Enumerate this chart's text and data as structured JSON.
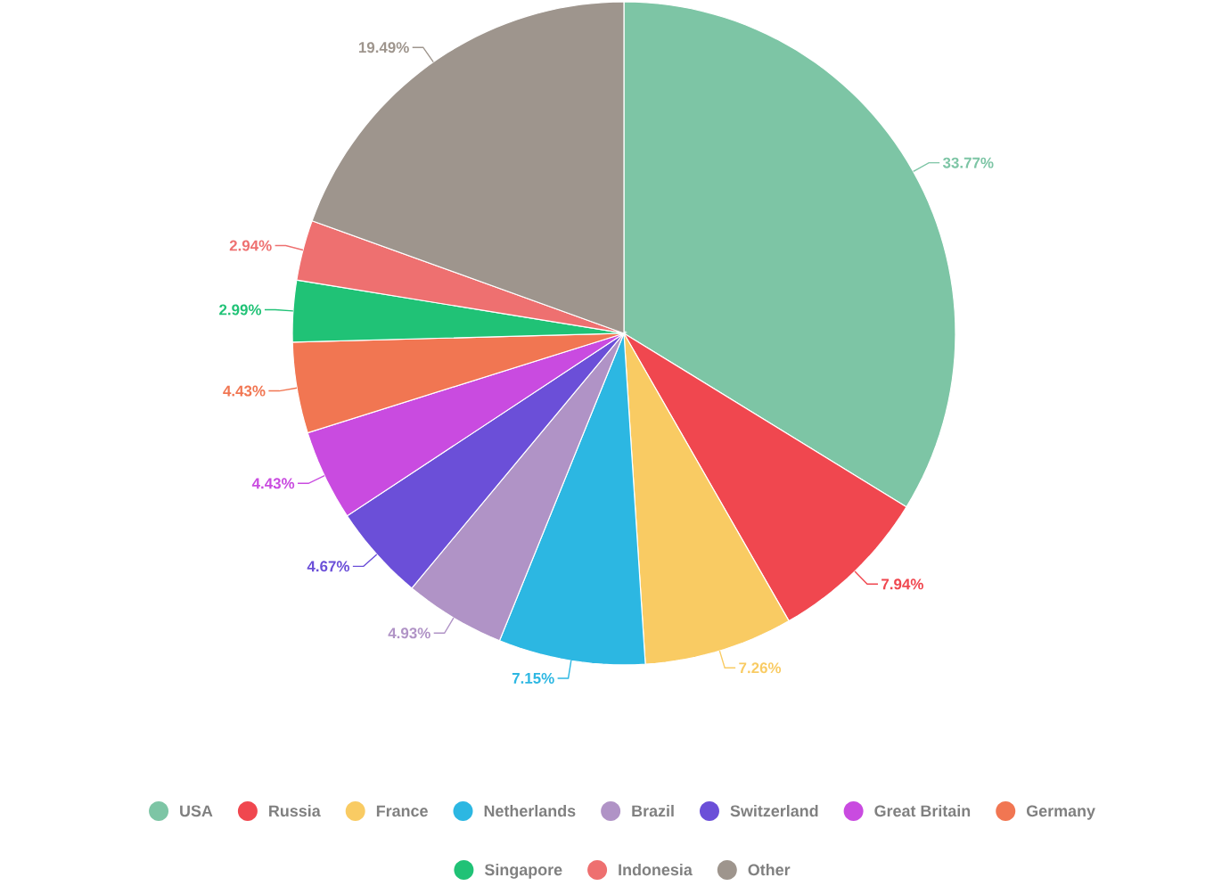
{
  "chart_data": {
    "type": "pie",
    "categories": [
      "USA",
      "Russia",
      "France",
      "Netherlands",
      "Brazil",
      "Switzerland",
      "Great Britain",
      "Germany",
      "Singapore",
      "Indonesia",
      "Other"
    ],
    "values": [
      33.77,
      7.94,
      7.26,
      7.15,
      4.93,
      4.67,
      4.43,
      4.43,
      2.99,
      2.94,
      19.49
    ],
    "value_labels": [
      "33.77%",
      "7.94%",
      "7.26%",
      "7.15%",
      "4.93%",
      "4.67%",
      "4.43%",
      "4.43%",
      "2.99%",
      "2.94%",
      "19.49%"
    ],
    "colors": [
      "#7dc5a5",
      "#f0474f",
      "#f9cb63",
      "#2cb7e2",
      "#b093c6",
      "#6b4fd8",
      "#c94be0",
      "#f17652",
      "#20c276",
      "#ee7070",
      "#9e958d"
    ],
    "legend": "bottom"
  }
}
